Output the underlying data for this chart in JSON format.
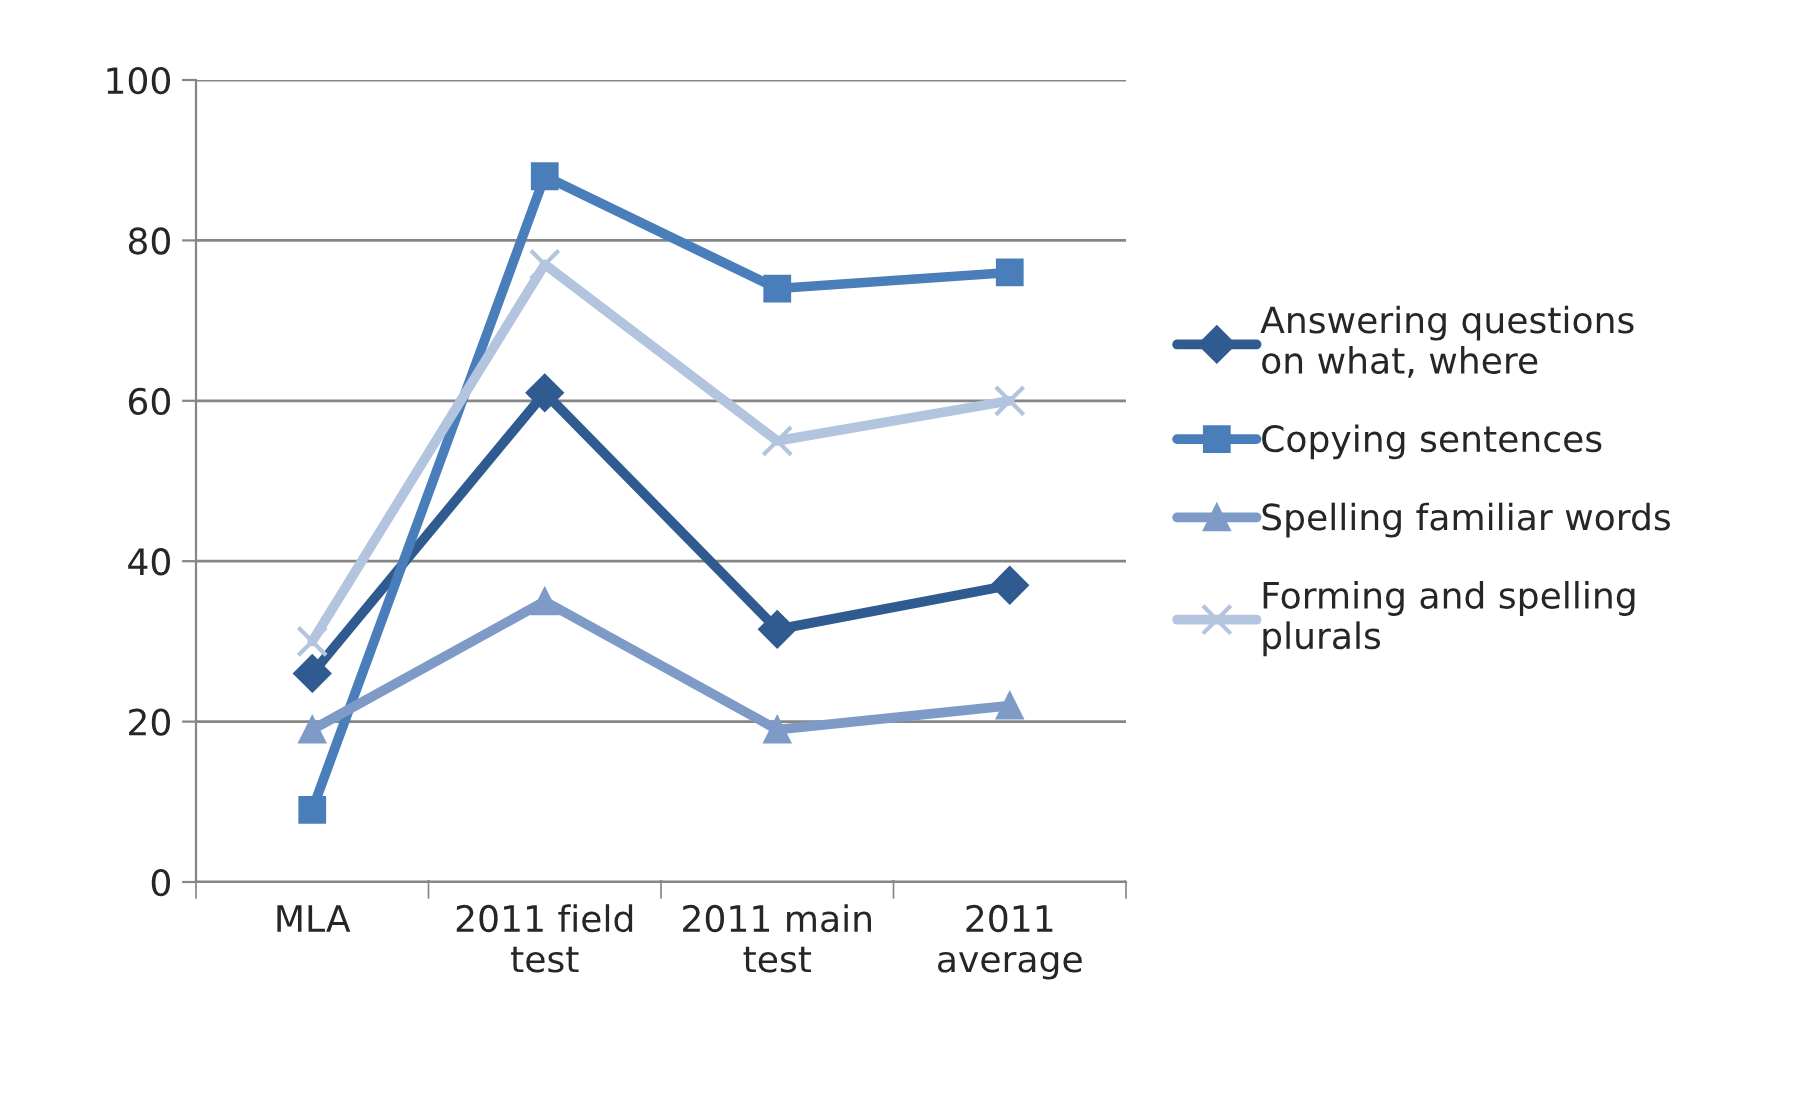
{
  "chart_data": {
    "type": "line",
    "categories": [
      "MLA",
      "2011 field\ntest",
      "2011 main\ntest",
      "2011\naverage"
    ],
    "series": [
      {
        "name": "Answering questions\non what, where",
        "color": "#2f5b91",
        "marker": "diamond",
        "values": [
          26,
          61,
          31.5,
          37
        ]
      },
      {
        "name": "Copying sentences",
        "color": "#4a7ebb",
        "marker": "square",
        "values": [
          9,
          88,
          74,
          76
        ]
      },
      {
        "name": "Spelling familiar words",
        "color": "#7e9bc8",
        "marker": "triangle",
        "values": [
          19,
          35,
          19,
          22
        ]
      },
      {
        "name": "Forming and spelling\nplurals",
        "color": "#b3c4df",
        "marker": "cross",
        "values": [
          30,
          77,
          55,
          60
        ]
      }
    ],
    "ylim": [
      0,
      100
    ],
    "yticks": [
      0,
      20,
      40,
      60,
      80,
      100
    ],
    "grid": "y",
    "legend": "right",
    "line_style": "solid"
  }
}
